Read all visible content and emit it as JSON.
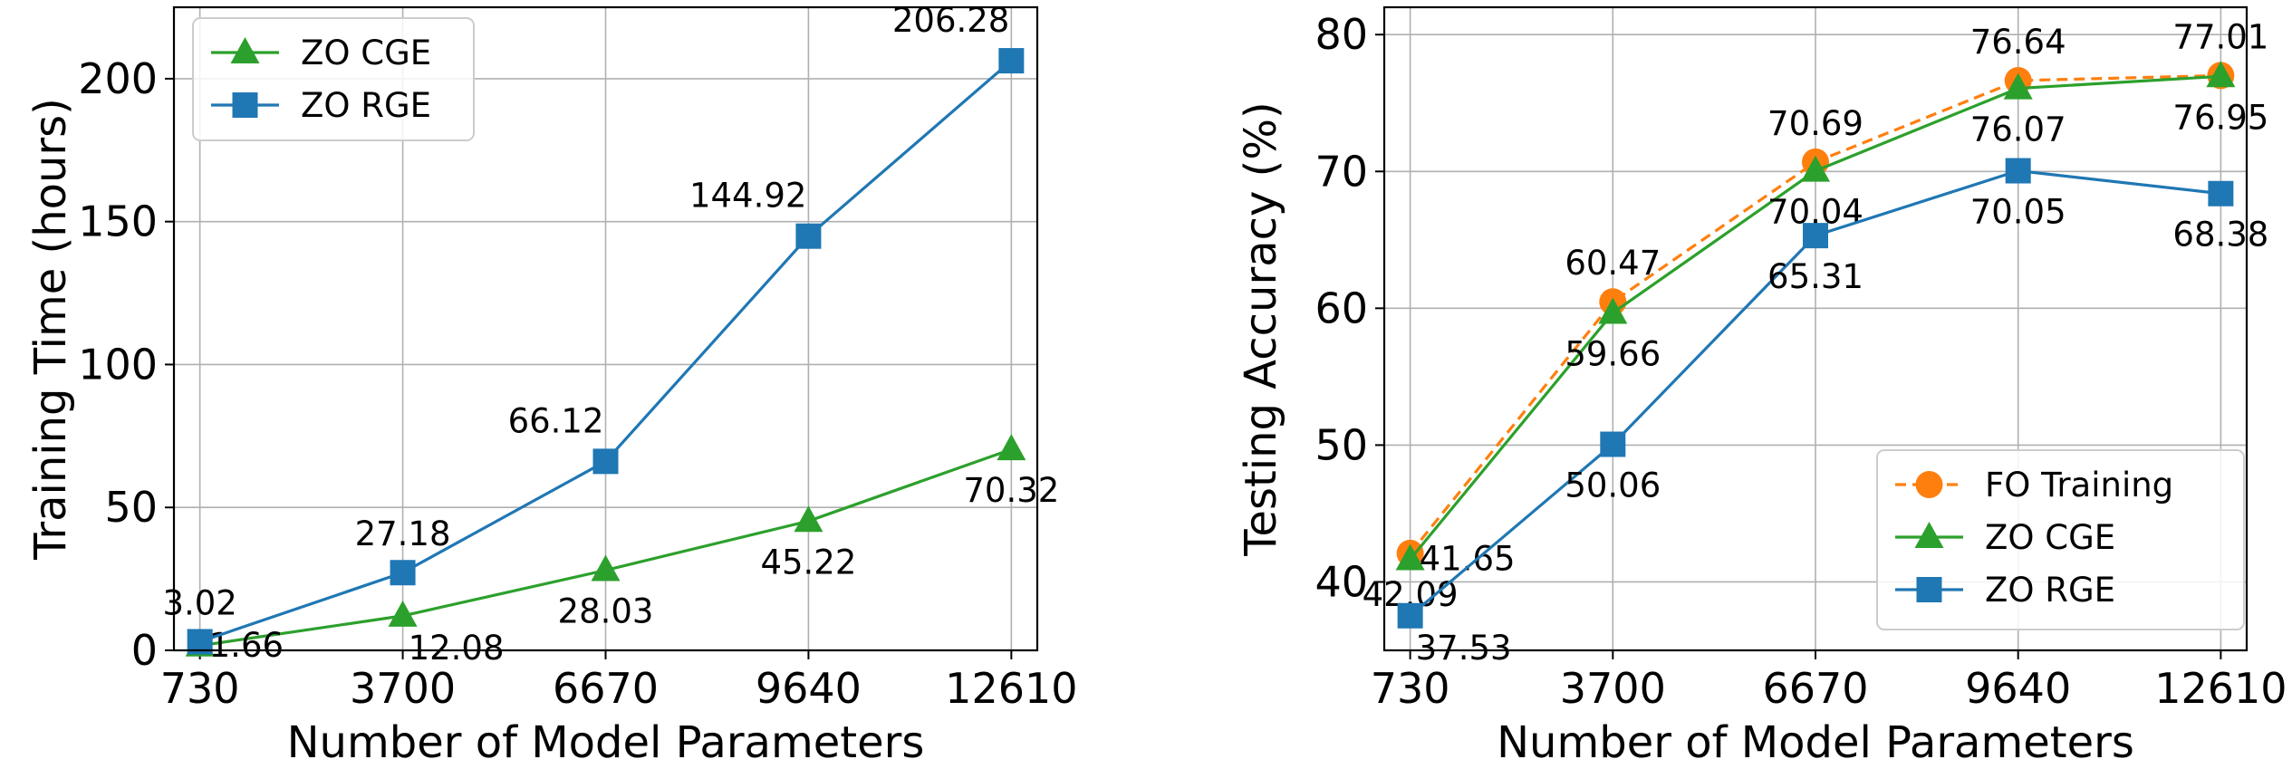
{
  "chart_data": [
    {
      "type": "line",
      "xlabel": "Number of Model Parameters",
      "ylabel": "Training Time (hours)",
      "categories": [
        "730",
        "3700",
        "6670",
        "9640",
        "12610"
      ],
      "x": [
        730,
        3700,
        6670,
        9640,
        12610
      ],
      "xlim": [
        350,
        12990
      ],
      "ylim": [
        0,
        225
      ],
      "yticks": [
        0,
        50,
        100,
        150,
        200
      ],
      "grid": true,
      "legend": "top-left",
      "series": [
        {
          "name": "ZO CGE",
          "color": "#2ca02c",
          "marker": "triangle",
          "line": "solid",
          "values": [
            1.66,
            12.08,
            28.03,
            45.22,
            70.32
          ],
          "labels": [
            "1.66",
            "12.08",
            "28.03",
            "45.22",
            "70.32"
          ],
          "label_pos": [
            "right",
            "right-below",
            "below",
            "below",
            "below"
          ]
        },
        {
          "name": "ZO RGE",
          "color": "#1f77b4",
          "marker": "square",
          "line": "solid",
          "values": [
            3.02,
            27.18,
            66.12,
            144.92,
            206.28
          ],
          "labels": [
            "3.02",
            "27.18",
            "66.12",
            "144.92",
            "206.28"
          ],
          "label_pos": [
            "above",
            "above",
            "above-left",
            "above-left",
            "above-left"
          ]
        }
      ]
    },
    {
      "type": "line",
      "xlabel": "Number of Model Parameters",
      "ylabel": "Testing Accuracy (%)",
      "categories": [
        "730",
        "3700",
        "6670",
        "9640",
        "12610"
      ],
      "x": [
        730,
        3700,
        6670,
        9640,
        12610
      ],
      "xlim": [
        350,
        12990
      ],
      "ylim": [
        35,
        82
      ],
      "yticks": [
        40,
        50,
        60,
        70,
        80
      ],
      "grid": true,
      "legend": "bottom-right",
      "series": [
        {
          "name": "FO Training",
          "color": "#ff7f0e",
          "marker": "circle",
          "line": "dashed",
          "values": [
            42.09,
            60.47,
            70.69,
            76.64,
            77.01
          ],
          "labels": [
            "42.09",
            "60.47",
            "70.69",
            "76.64",
            "77.01"
          ],
          "label_pos": [
            "below",
            "above",
            "above",
            "above",
            "above"
          ]
        },
        {
          "name": "ZO CGE",
          "color": "#2ca02c",
          "marker": "triangle",
          "line": "solid",
          "values": [
            41.65,
            59.66,
            70.04,
            76.07,
            76.95
          ],
          "labels": [
            "41.65",
            "59.66",
            "70.04",
            "76.07",
            "76.95"
          ],
          "label_pos": [
            "right",
            "below",
            "below",
            "below",
            "below"
          ]
        },
        {
          "name": "ZO RGE",
          "color": "#1f77b4",
          "marker": "square",
          "line": "solid",
          "values": [
            37.53,
            50.06,
            65.31,
            70.05,
            68.38
          ],
          "labels": [
            "37.53",
            "50.06",
            "65.31",
            "70.05",
            "68.38"
          ],
          "label_pos": [
            "right-below",
            "below",
            "below",
            "below",
            "below"
          ]
        }
      ]
    }
  ]
}
